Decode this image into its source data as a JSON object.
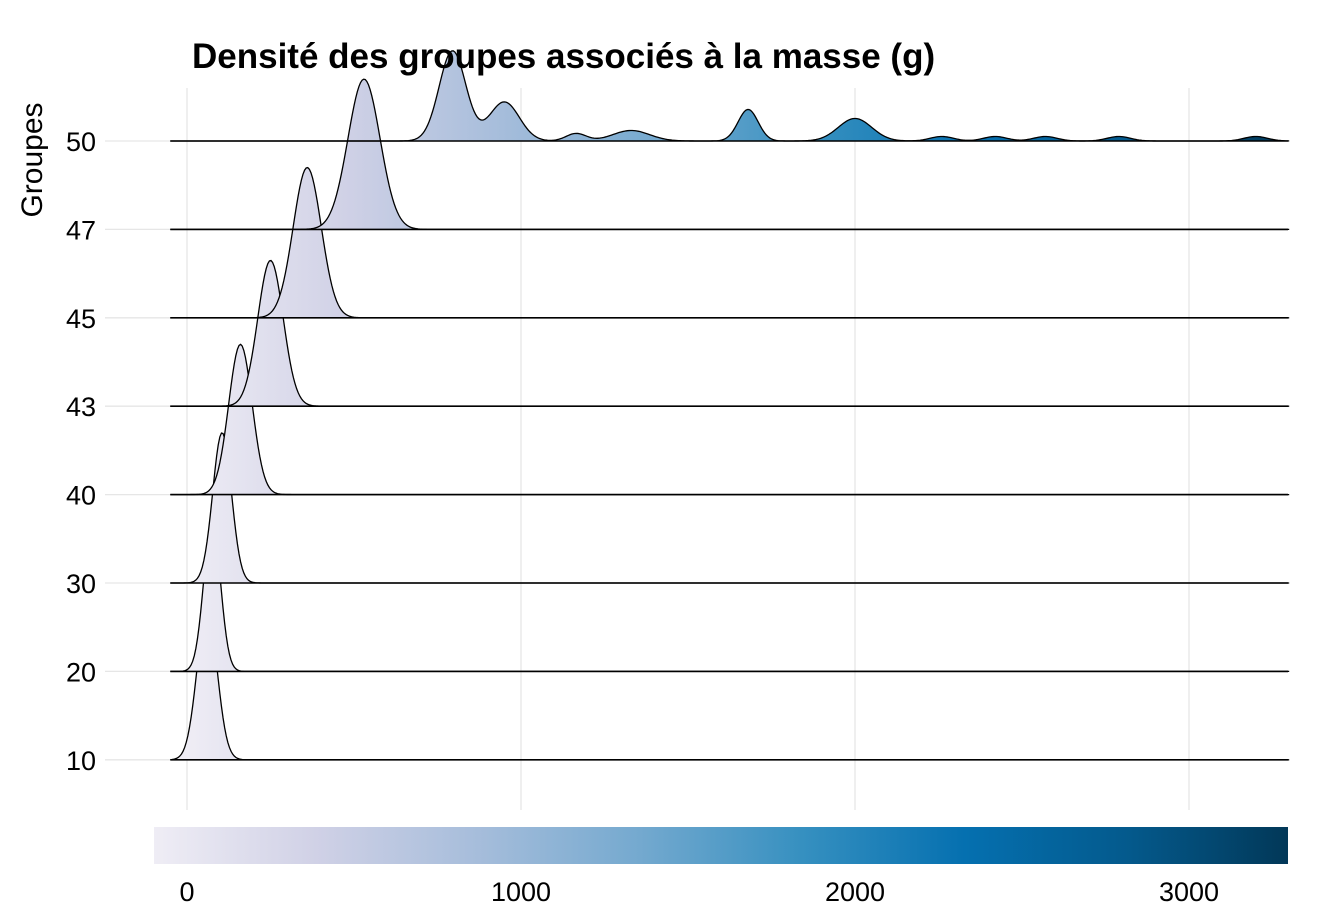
{
  "chart_data": {
    "type": "ridgeline",
    "title": "Densité des groupes associés à la masse (g)",
    "xlabel": "",
    "ylabel": "Groupes",
    "xlim": [
      -50,
      3300
    ],
    "x_gridlines": [
      0,
      1000,
      2000,
      3000
    ],
    "grid": true,
    "legend": {
      "position": "bottom",
      "kind": "colorbar",
      "range": [
        0,
        3300
      ],
      "ticks": [
        "0",
        "1000",
        "2000",
        "3000"
      ],
      "colors": [
        "#efedf5",
        "#d0d1e6",
        "#a6bddb",
        "#74a9cf",
        "#3690c0",
        "#0570b0",
        "#045a8d",
        "#023858"
      ]
    },
    "groups": [
      {
        "name": "10",
        "peaks": [
          [
            60,
            30,
            1.0
          ]
        ]
      },
      {
        "name": "20",
        "peaks": [
          [
            75,
            25,
            1.0
          ]
        ]
      },
      {
        "name": "30",
        "peaks": [
          [
            105,
            28,
            1.0
          ]
        ]
      },
      {
        "name": "40",
        "peaks": [
          [
            160,
            35,
            1.0
          ]
        ]
      },
      {
        "name": "43",
        "peaks": [
          [
            250,
            38,
            0.97
          ]
        ]
      },
      {
        "name": "45",
        "peaks": [
          [
            360,
            42,
            1.0
          ]
        ]
      },
      {
        "name": "47",
        "peaks": [
          [
            530,
            48,
            1.0
          ]
        ]
      },
      {
        "name": "50",
        "peaks": [
          [
            795,
            40,
            0.6
          ],
          [
            950,
            45,
            0.26
          ],
          [
            1165,
            30,
            0.05
          ],
          [
            1330,
            55,
            0.07
          ],
          [
            1680,
            30,
            0.21
          ],
          [
            2000,
            50,
            0.15
          ],
          [
            2260,
            35,
            0.03
          ],
          [
            2420,
            35,
            0.03
          ],
          [
            2570,
            35,
            0.03
          ],
          [
            2790,
            35,
            0.03
          ],
          [
            3200,
            35,
            0.03
          ]
        ]
      }
    ],
    "ridge_height_scale": 1.7
  }
}
